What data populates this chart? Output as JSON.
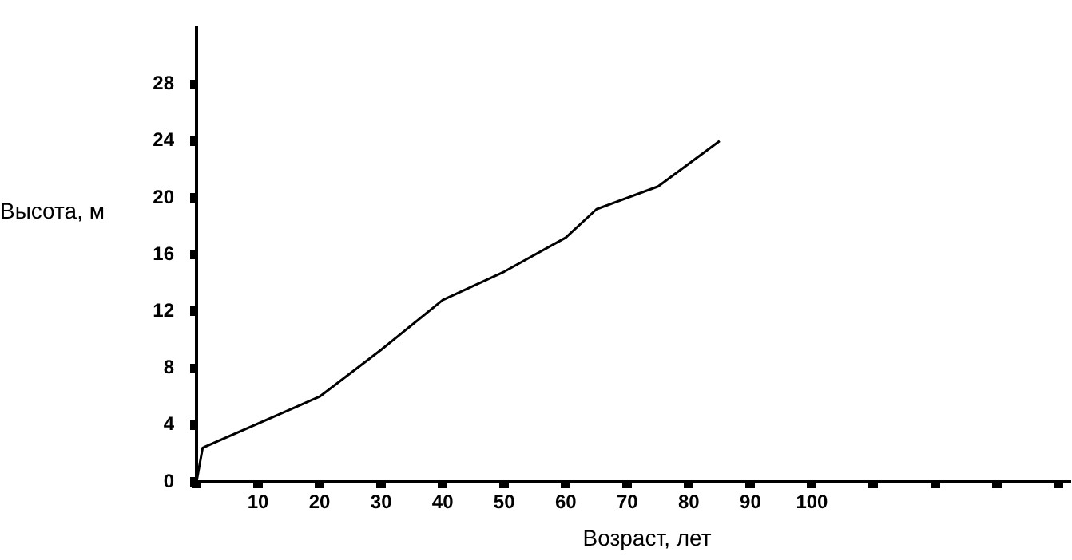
{
  "chart_data": {
    "type": "line",
    "xlabel": "Возраст, лет",
    "ylabel": "Высота, м",
    "x": [
      0,
      1,
      20,
      30,
      40,
      50,
      60,
      65,
      75,
      85
    ],
    "series": [
      {
        "color": "#000000",
        "values": [
          0,
          2.4,
          6,
          9.3,
          12.8,
          14.8,
          17.2,
          19.2,
          20.8,
          24
        ]
      }
    ],
    "xlim": [
      0,
      142
    ],
    "ylim": [
      0,
      32
    ],
    "xticks": [
      {
        "value": 0,
        "label": null
      },
      10,
      20,
      30,
      40,
      50,
      60,
      70,
      80,
      90,
      100,
      {
        "value": 110,
        "label": null
      },
      {
        "value": 120,
        "label": null
      },
      {
        "value": 130,
        "label": null
      },
      {
        "value": 140,
        "label": null
      }
    ],
    "yticks": [
      0,
      4,
      8,
      12,
      16,
      20,
      24,
      28
    ],
    "grid": false,
    "legend": false,
    "marker": "none",
    "line_style": "solid"
  }
}
